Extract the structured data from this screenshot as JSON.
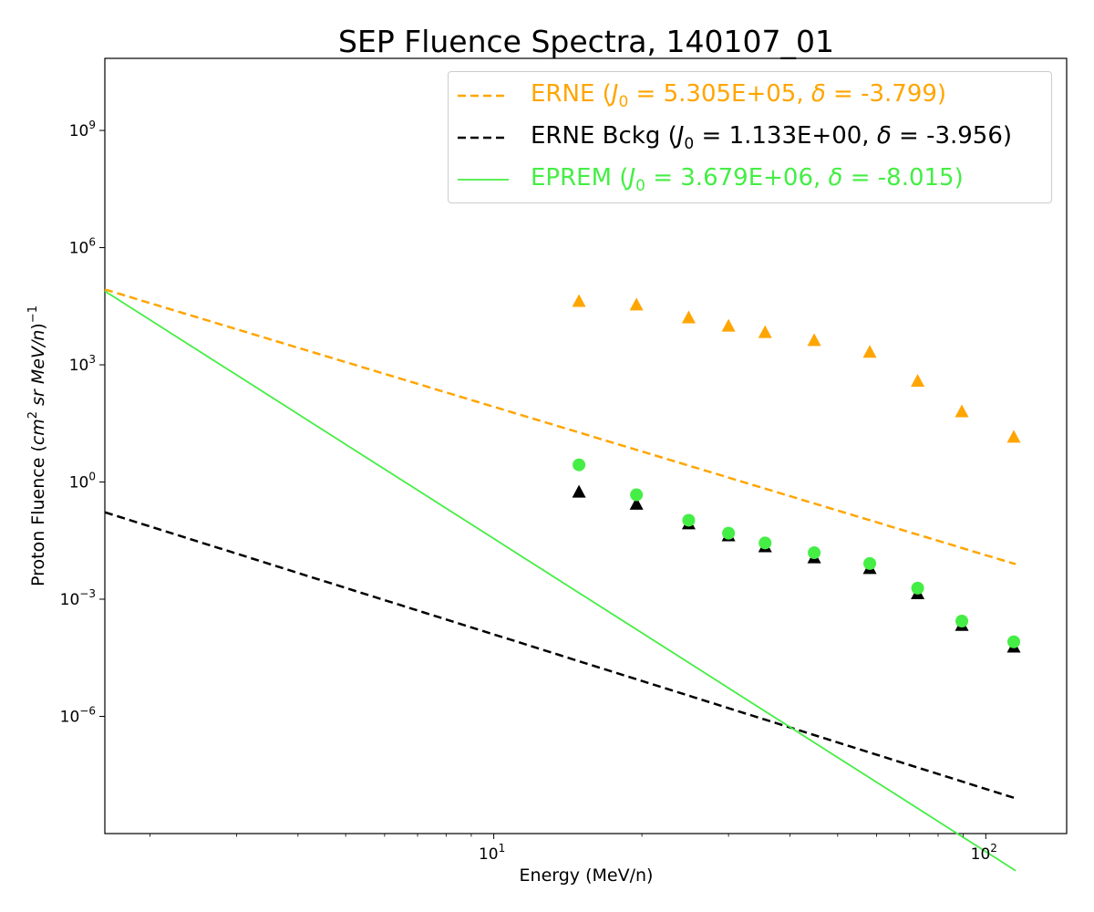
{
  "chart_data": {
    "type": "scatter",
    "title": "SEP Fluence Spectra, 140107_01",
    "xlabel": "Energy (MeV/n)",
    "ylabel": {
      "prefix": "Proton Fluence (",
      "unit_a": "cm",
      "unit_a_exp": "2",
      "unit_b": " sr MeV/n",
      "suffix": ")",
      "suffix_exp": "−1"
    },
    "xscale": "log",
    "yscale": "log",
    "xlim": [
      1.62,
      146
    ],
    "ylim": [
      1e-09,
      70000000000.0
    ],
    "x_ticks": [
      {
        "value": 10,
        "base": "10",
        "exp": "1"
      },
      {
        "value": 100,
        "base": "10",
        "exp": "2"
      }
    ],
    "y_ticks": [
      {
        "value": 1e-06,
        "base": "10",
        "exp": "−6"
      },
      {
        "value": 0.001,
        "base": "10",
        "exp": "−3"
      },
      {
        "value": 1,
        "base": "10",
        "exp": "0"
      },
      {
        "value": 1000.0,
        "base": "10",
        "exp": "3"
      },
      {
        "value": 1000000.0,
        "base": "10",
        "exp": "6"
      },
      {
        "value": 1000000000.0,
        "base": "10",
        "exp": "9"
      }
    ],
    "grid": false,
    "legend_position": "top-right",
    "legend": [
      {
        "pre": "ERNE (",
        "j": "J",
        "sub": "0",
        "mid": " = 5.305E+05, ",
        "d": "δ",
        "post": " = -3.799)",
        "color": "#ffa500",
        "style": "dashed"
      },
      {
        "pre": "ERNE Bckg (",
        "j": "J",
        "sub": "0",
        "mid": " = 1.133E+00, ",
        "d": "δ",
        "post": " = -3.956)",
        "color": "#000000",
        "style": "dashed"
      },
      {
        "pre": "EPREM (",
        "j": "J",
        "sub": "0",
        "mid": " = 3.679E+06, ",
        "d": "δ",
        "post": " = -8.015)",
        "color": "#44ee44",
        "style": "solid"
      }
    ],
    "fits": [
      {
        "J0": 530500,
        "delta": -3.799,
        "x_range": [
          1.62,
          115
        ],
        "color": "#ffa500",
        "dash": "9,5",
        "width": 2.5
      },
      {
        "J0": 1.133,
        "delta": -3.956,
        "x_range": [
          1.62,
          115
        ],
        "color": "#000000",
        "dash": "9,5",
        "width": 2.5
      },
      {
        "J0": 3679000,
        "delta": -8.015,
        "x_range": [
          1.62,
          115
        ],
        "color": "#44ee44",
        "dash": "",
        "width": 1.8
      }
    ],
    "series": [
      {
        "marker": "triangle",
        "color": "#ffa500",
        "points": [
          [
            14.9,
            42000
          ],
          [
            19.5,
            34000
          ],
          [
            24.9,
            16000
          ],
          [
            30.0,
            9800
          ],
          [
            35.6,
            6700
          ],
          [
            44.8,
            4200
          ],
          [
            58.1,
            2100
          ],
          [
            72.7,
            380
          ],
          [
            89.4,
            63
          ],
          [
            114.0,
            14
          ]
        ]
      },
      {
        "marker": "triangle",
        "color": "#000000",
        "points": [
          [
            14.9,
            0.55
          ],
          [
            19.5,
            0.27
          ],
          [
            24.9,
            0.085
          ],
          [
            30.0,
            0.042
          ],
          [
            35.6,
            0.022
          ],
          [
            44.8,
            0.0115
          ],
          [
            58.1,
            0.0061
          ],
          [
            72.7,
            0.00138
          ],
          [
            89.4,
            0.000214
          ],
          [
            114.0,
            5.95e-05
          ]
        ]
      },
      {
        "marker": "circle",
        "color": "#44ee44",
        "points": [
          [
            14.9,
            2.75
          ],
          [
            19.5,
            0.47
          ],
          [
            24.9,
            0.105
          ],
          [
            30.0,
            0.049
          ],
          [
            35.6,
            0.0275
          ],
          [
            44.8,
            0.0155
          ],
          [
            58.1,
            0.0082
          ],
          [
            72.7,
            0.00192
          ],
          [
            89.4,
            0.000275
          ],
          [
            114.0,
            8.1e-05
          ]
        ]
      }
    ]
  }
}
